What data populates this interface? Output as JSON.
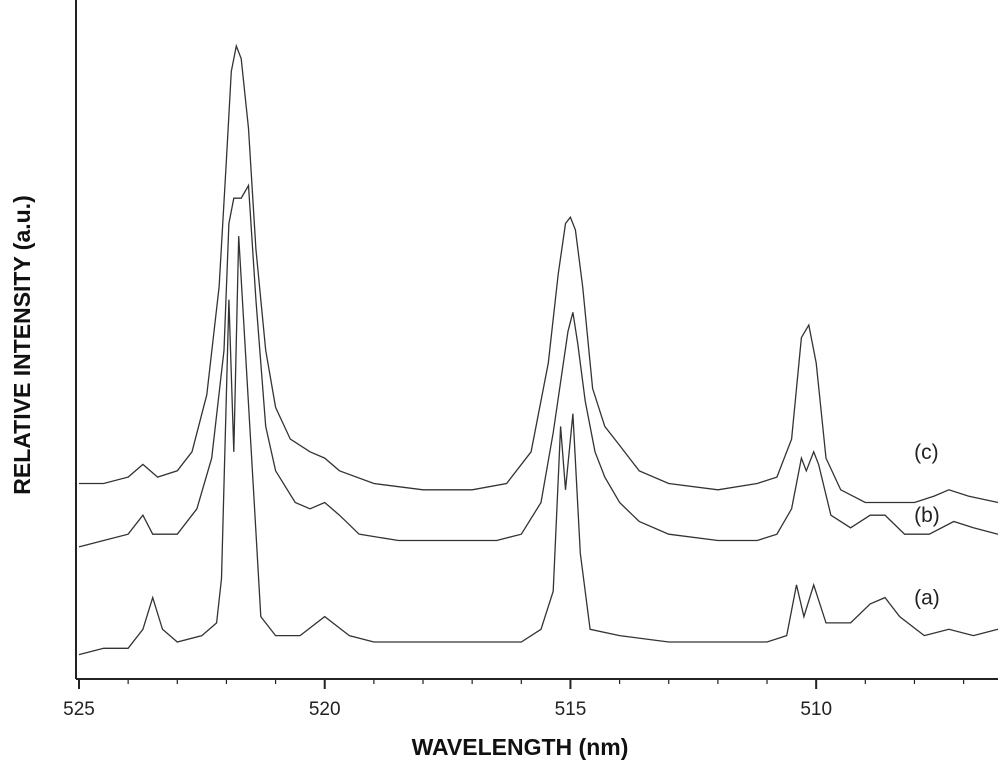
{
  "chart_data": {
    "type": "line",
    "xlabel": "WAVELENGTH (nm)",
    "ylabel": "RELATIVE INTENSITY (a.u.)",
    "xlim": [
      525,
      506.3
    ],
    "x_reversed": true,
    "ylim": [
      0,
      1
    ],
    "y_ticks_labeled": false,
    "grid": false,
    "x_ticks": [
      525,
      520,
      515,
      510
    ],
    "x_tick_labels": [
      "525",
      "520",
      "515",
      "510"
    ],
    "series": [
      {
        "name": "(a)",
        "points": [
          [
            525.0,
            0.04
          ],
          [
            524.5,
            0.05
          ],
          [
            524.0,
            0.05
          ],
          [
            523.7,
            0.08
          ],
          [
            523.5,
            0.13
          ],
          [
            523.3,
            0.08
          ],
          [
            523.0,
            0.06
          ],
          [
            522.5,
            0.07
          ],
          [
            522.2,
            0.09
          ],
          [
            522.1,
            0.16
          ],
          [
            521.95,
            0.6
          ],
          [
            521.85,
            0.36
          ],
          [
            521.75,
            0.7
          ],
          [
            521.6,
            0.5
          ],
          [
            521.45,
            0.3
          ],
          [
            521.3,
            0.1
          ],
          [
            521.0,
            0.07
          ],
          [
            520.5,
            0.07
          ],
          [
            520.0,
            0.1
          ],
          [
            519.5,
            0.07
          ],
          [
            519.0,
            0.06
          ],
          [
            518.0,
            0.06
          ],
          [
            517.0,
            0.06
          ],
          [
            516.0,
            0.06
          ],
          [
            515.6,
            0.08
          ],
          [
            515.35,
            0.14
          ],
          [
            515.2,
            0.4
          ],
          [
            515.1,
            0.3
          ],
          [
            514.95,
            0.42
          ],
          [
            514.8,
            0.2
          ],
          [
            514.6,
            0.08
          ],
          [
            514.0,
            0.07
          ],
          [
            513.0,
            0.06
          ],
          [
            512.0,
            0.06
          ],
          [
            511.0,
            0.06
          ],
          [
            510.6,
            0.07
          ],
          [
            510.4,
            0.15
          ],
          [
            510.25,
            0.1
          ],
          [
            510.05,
            0.15
          ],
          [
            509.8,
            0.09
          ],
          [
            509.3,
            0.09
          ],
          [
            508.9,
            0.12
          ],
          [
            508.6,
            0.13
          ],
          [
            508.3,
            0.1
          ],
          [
            507.8,
            0.07
          ],
          [
            507.3,
            0.08
          ],
          [
            506.8,
            0.07
          ],
          [
            506.3,
            0.08
          ]
        ]
      },
      {
        "name": "(b)",
        "points": [
          [
            525.0,
            0.21
          ],
          [
            524.5,
            0.22
          ],
          [
            524.0,
            0.23
          ],
          [
            523.7,
            0.26
          ],
          [
            523.5,
            0.23
          ],
          [
            523.0,
            0.23
          ],
          [
            522.6,
            0.27
          ],
          [
            522.3,
            0.35
          ],
          [
            522.05,
            0.52
          ],
          [
            521.95,
            0.72
          ],
          [
            521.85,
            0.76
          ],
          [
            521.7,
            0.76
          ],
          [
            521.55,
            0.78
          ],
          [
            521.4,
            0.6
          ],
          [
            521.2,
            0.4
          ],
          [
            521.0,
            0.33
          ],
          [
            520.6,
            0.28
          ],
          [
            520.3,
            0.27
          ],
          [
            520.0,
            0.28
          ],
          [
            519.7,
            0.26
          ],
          [
            519.3,
            0.23
          ],
          [
            518.5,
            0.22
          ],
          [
            517.5,
            0.22
          ],
          [
            516.5,
            0.22
          ],
          [
            516.0,
            0.23
          ],
          [
            515.6,
            0.28
          ],
          [
            515.35,
            0.39
          ],
          [
            515.2,
            0.47
          ],
          [
            515.05,
            0.55
          ],
          [
            514.95,
            0.58
          ],
          [
            514.85,
            0.53
          ],
          [
            514.7,
            0.44
          ],
          [
            514.5,
            0.36
          ],
          [
            514.3,
            0.32
          ],
          [
            514.0,
            0.28
          ],
          [
            513.6,
            0.25
          ],
          [
            513.0,
            0.23
          ],
          [
            512.0,
            0.22
          ],
          [
            511.2,
            0.22
          ],
          [
            510.8,
            0.23
          ],
          [
            510.5,
            0.27
          ],
          [
            510.3,
            0.35
          ],
          [
            510.2,
            0.33
          ],
          [
            510.05,
            0.36
          ],
          [
            509.95,
            0.34
          ],
          [
            509.7,
            0.26
          ],
          [
            509.3,
            0.24
          ],
          [
            508.9,
            0.26
          ],
          [
            508.6,
            0.26
          ],
          [
            508.2,
            0.23
          ],
          [
            507.7,
            0.23
          ],
          [
            507.2,
            0.25
          ],
          [
            506.8,
            0.24
          ],
          [
            506.3,
            0.23
          ]
        ]
      },
      {
        "name": "(c)",
        "points": [
          [
            525.0,
            0.31
          ],
          [
            524.5,
            0.31
          ],
          [
            524.0,
            0.32
          ],
          [
            523.7,
            0.34
          ],
          [
            523.4,
            0.32
          ],
          [
            523.0,
            0.33
          ],
          [
            522.7,
            0.36
          ],
          [
            522.4,
            0.45
          ],
          [
            522.15,
            0.62
          ],
          [
            522.0,
            0.82
          ],
          [
            521.9,
            0.96
          ],
          [
            521.8,
            1.0
          ],
          [
            521.7,
            0.98
          ],
          [
            521.55,
            0.87
          ],
          [
            521.4,
            0.68
          ],
          [
            521.2,
            0.52
          ],
          [
            521.0,
            0.43
          ],
          [
            520.7,
            0.38
          ],
          [
            520.3,
            0.36
          ],
          [
            520.0,
            0.35
          ],
          [
            519.7,
            0.33
          ],
          [
            519.0,
            0.31
          ],
          [
            518.0,
            0.3
          ],
          [
            517.0,
            0.3
          ],
          [
            516.3,
            0.31
          ],
          [
            515.8,
            0.36
          ],
          [
            515.45,
            0.5
          ],
          [
            515.25,
            0.64
          ],
          [
            515.1,
            0.72
          ],
          [
            515.0,
            0.73
          ],
          [
            514.9,
            0.71
          ],
          [
            514.75,
            0.62
          ],
          [
            514.55,
            0.46
          ],
          [
            514.3,
            0.4
          ],
          [
            514.0,
            0.37
          ],
          [
            513.6,
            0.33
          ],
          [
            513.0,
            0.31
          ],
          [
            512.0,
            0.3
          ],
          [
            511.2,
            0.31
          ],
          [
            510.8,
            0.32
          ],
          [
            510.5,
            0.38
          ],
          [
            510.3,
            0.54
          ],
          [
            510.15,
            0.56
          ],
          [
            510.0,
            0.5
          ],
          [
            509.8,
            0.35
          ],
          [
            509.5,
            0.3
          ],
          [
            509.0,
            0.28
          ],
          [
            508.5,
            0.28
          ],
          [
            508.0,
            0.28
          ],
          [
            507.6,
            0.29
          ],
          [
            507.3,
            0.3
          ],
          [
            506.9,
            0.29
          ],
          [
            506.3,
            0.28
          ]
        ]
      }
    ],
    "annotations": [
      {
        "text": "(c)",
        "x": 507.6,
        "y": 0.36
      },
      {
        "text": "(b)",
        "x": 507.6,
        "y": 0.26
      },
      {
        "text": "(a)",
        "x": 507.6,
        "y": 0.13
      }
    ]
  }
}
